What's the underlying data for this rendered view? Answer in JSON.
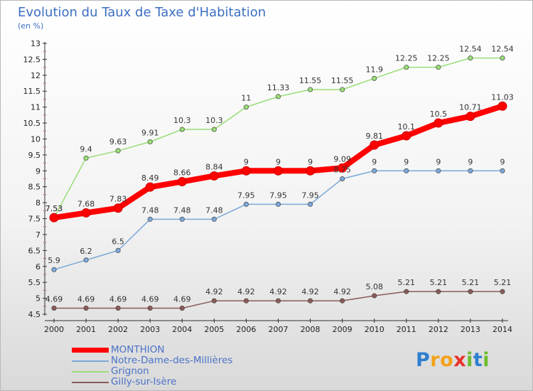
{
  "title": "Evolution du Taux de Taxe d'Habitation",
  "subtitle": "(en %)",
  "logo": {
    "letters": [
      "P",
      "r",
      "o",
      "x",
      "i",
      "t",
      "i"
    ],
    "colors": [
      "#2f7fd0",
      "#f2a21a",
      "#f2a21a",
      "#e8322b",
      "#6bbd2e",
      "#2f7fd0",
      "#6bbd2e"
    ]
  },
  "chart_data": {
    "type": "line",
    "title": "Evolution du Taux de Taxe d'Habitation",
    "ylabel": "(en %)",
    "xlabel": "",
    "x": [
      "2000",
      "2001",
      "2002",
      "2003",
      "2004",
      "2005",
      "2006",
      "2007",
      "2008",
      "2009",
      "2010",
      "2011",
      "2012",
      "2013",
      "2014"
    ],
    "ylim": [
      4.5,
      13
    ],
    "ytick_step": 0.5,
    "ytick_labels": [
      "4.5",
      "5",
      "5.5",
      "6",
      "6.5",
      "7",
      "7.5",
      "8",
      "8.5",
      "9",
      "9.5",
      "10",
      "10.5",
      "11",
      "11.5",
      "12",
      "12.5",
      "13"
    ],
    "grid": false,
    "legend_position": "bottom-left",
    "series": [
      {
        "name": "MONTHION",
        "color": "#ff0000",
        "values": [
          7.53,
          7.68,
          7.83,
          8.49,
          8.66,
          8.84,
          9,
          9,
          9,
          9.09,
          9.81,
          10.1,
          10.5,
          10.71,
          11.03
        ],
        "labels": [
          "7.53",
          "7.68",
          "7.83",
          "8.49",
          "8.66",
          "8.84",
          "9",
          "9",
          "9",
          "9.09",
          "9.81",
          "10.1",
          "10.5",
          "10.71",
          "11.03"
        ]
      },
      {
        "name": "Notre-Dame-des-Millières",
        "color": "#7ba9d8",
        "values": [
          5.9,
          6.2,
          6.5,
          7.48,
          7.48,
          7.48,
          7.95,
          7.95,
          7.95,
          8.75,
          9,
          9,
          9,
          9,
          9
        ],
        "labels": [
          "5.9",
          "6.2",
          "6.5",
          "7.48",
          "7.48",
          "7.48",
          "7.95",
          "7.95",
          "7.95",
          "8.75",
          "9",
          "9",
          "9",
          "9",
          "9"
        ]
      },
      {
        "name": "Grignon",
        "color": "#99dd77",
        "values": [
          7.53,
          9.4,
          9.63,
          9.91,
          10.3,
          10.3,
          11,
          11.33,
          11.55,
          11.55,
          11.9,
          12.25,
          12.25,
          12.54,
          12.54
        ],
        "labels": [
          "7.53",
          "9.4",
          "9.63",
          "9.91",
          "10.3",
          "10.3",
          "11",
          "11.33",
          "11.55",
          "11.55",
          "11.9",
          "12.25",
          "12.25",
          "12.54",
          "12.54"
        ]
      },
      {
        "name": "Gilly-sur-Isère",
        "color": "#8c5a5a",
        "values": [
          4.69,
          4.69,
          4.69,
          4.69,
          4.69,
          4.92,
          4.92,
          4.92,
          4.92,
          4.92,
          5.08,
          5.21,
          5.21,
          5.21,
          5.21
        ],
        "labels": [
          "4.69",
          "4.69",
          "4.69",
          "4.69",
          "4.69",
          "4.92",
          "4.92",
          "4.92",
          "4.92",
          "4.92",
          "5.08",
          "5.21",
          "5.21",
          "5.21",
          "5.21"
        ]
      }
    ]
  }
}
